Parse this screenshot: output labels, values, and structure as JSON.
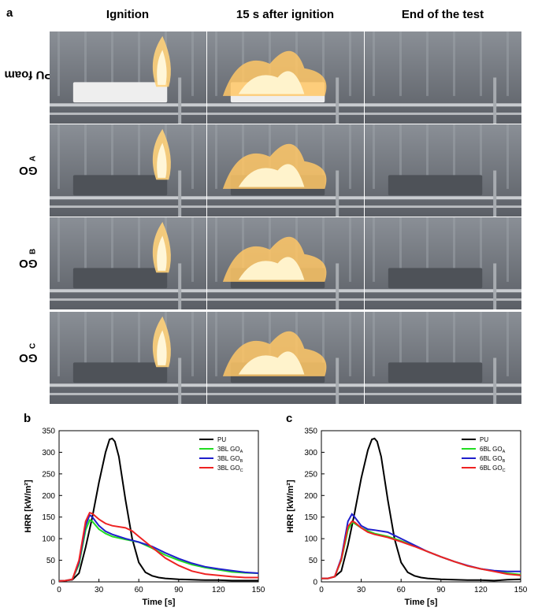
{
  "panel_a": {
    "letter": "a",
    "columns": [
      "Ignition",
      "15 s after ignition",
      "End of the test"
    ],
    "rows": [
      {
        "label": "PU foam",
        "sub": ""
      },
      {
        "label": "GO",
        "sub": "A"
      },
      {
        "label": "GO",
        "sub": "B"
      },
      {
        "label": "GO",
        "sub": "C"
      }
    ]
  },
  "panel_b": {
    "letter": "b"
  },
  "panel_c": {
    "letter": "c"
  },
  "chart_data": [
    {
      "type": "line",
      "xlabel": "Time [s]",
      "ylabel": "HRR [kW/m²]",
      "xlim": [
        0,
        150
      ],
      "ylim": [
        0,
        350
      ],
      "xticks": [
        0,
        30,
        60,
        90,
        120,
        150
      ],
      "yticks": [
        0,
        50,
        100,
        150,
        200,
        250,
        300,
        350
      ],
      "legend_position": "top-right",
      "series": [
        {
          "name": "PU",
          "sub": "",
          "color": "#000000",
          "x": [
            0,
            5,
            10,
            15,
            20,
            25,
            30,
            35,
            38,
            40,
            42,
            45,
            50,
            55,
            60,
            65,
            70,
            75,
            80,
            90,
            100,
            110,
            120,
            130,
            140,
            150
          ],
          "y": [
            2,
            3,
            5,
            20,
            80,
            150,
            230,
            300,
            330,
            332,
            325,
            290,
            190,
            100,
            45,
            22,
            14,
            10,
            8,
            6,
            5,
            4,
            4,
            3,
            3,
            3
          ]
        },
        {
          "name": "3BL GO",
          "sub": "A",
          "color": "#22dd22",
          "x": [
            0,
            5,
            10,
            15,
            20,
            23,
            25,
            30,
            35,
            40,
            50,
            60,
            70,
            80,
            90,
            100,
            110,
            120,
            130,
            140,
            150
          ],
          "y": [
            2,
            3,
            6,
            40,
            120,
            143,
            140,
            122,
            112,
            105,
            98,
            92,
            78,
            62,
            50,
            40,
            33,
            28,
            23,
            21,
            20
          ]
        },
        {
          "name": "3BL GO",
          "sub": "B",
          "color": "#1f1fcc",
          "x": [
            0,
            5,
            10,
            15,
            20,
            23,
            25,
            30,
            35,
            40,
            50,
            60,
            70,
            80,
            90,
            100,
            110,
            120,
            130,
            140,
            150
          ],
          "y": [
            2,
            3,
            6,
            45,
            130,
            155,
            150,
            130,
            117,
            110,
            100,
            92,
            82,
            67,
            54,
            43,
            35,
            30,
            26,
            22,
            20
          ]
        },
        {
          "name": "3BL GO",
          "sub": "C",
          "color": "#ee2222",
          "x": [
            0,
            5,
            10,
            15,
            20,
            23,
            25,
            30,
            35,
            40,
            50,
            55,
            60,
            70,
            80,
            90,
            100,
            110,
            120,
            130,
            140,
            150
          ],
          "y": [
            2,
            3,
            6,
            50,
            140,
            160,
            158,
            145,
            135,
            130,
            125,
            118,
            105,
            80,
            55,
            38,
            25,
            18,
            15,
            12,
            10,
            10
          ]
        }
      ]
    },
    {
      "type": "line",
      "xlabel": "Time [s]",
      "ylabel": "HRR [kW/m²]",
      "xlim": [
        0,
        150
      ],
      "ylim": [
        0,
        350
      ],
      "xticks": [
        0,
        30,
        60,
        90,
        120,
        150
      ],
      "yticks": [
        0,
        50,
        100,
        150,
        200,
        250,
        300,
        350
      ],
      "legend_position": "top-right",
      "series": [
        {
          "name": "PU",
          "sub": "",
          "color": "#000000",
          "x": [
            0,
            5,
            10,
            15,
            20,
            25,
            30,
            35,
            38,
            40,
            42,
            45,
            50,
            55,
            60,
            65,
            70,
            75,
            80,
            90,
            100,
            110,
            120,
            130,
            140,
            150
          ],
          "y": [
            8,
            8,
            12,
            25,
            85,
            160,
            240,
            305,
            330,
            332,
            325,
            290,
            190,
            100,
            45,
            22,
            14,
            10,
            8,
            6,
            5,
            4,
            4,
            3,
            5,
            6
          ]
        },
        {
          "name": "6BL GO",
          "sub": "A",
          "color": "#22dd22",
          "x": [
            0,
            5,
            10,
            15,
            20,
            23,
            25,
            30,
            35,
            40,
            50,
            60,
            70,
            80,
            90,
            100,
            110,
            120,
            130,
            140,
            150
          ],
          "y": [
            8,
            8,
            12,
            50,
            120,
            138,
            135,
            125,
            118,
            112,
            105,
            95,
            83,
            70,
            58,
            47,
            37,
            30,
            25,
            20,
            17
          ]
        },
        {
          "name": "6BL GO",
          "sub": "B",
          "color": "#1f1fcc",
          "x": [
            0,
            5,
            10,
            15,
            20,
            23,
            25,
            30,
            35,
            40,
            50,
            60,
            70,
            80,
            90,
            100,
            110,
            120,
            130,
            140,
            150
          ],
          "y": [
            8,
            8,
            12,
            55,
            140,
            157,
            150,
            130,
            122,
            120,
            115,
            100,
            85,
            70,
            58,
            47,
            38,
            30,
            26,
            24,
            24
          ]
        },
        {
          "name": "6BL GO",
          "sub": "C",
          "color": "#ee2222",
          "x": [
            0,
            5,
            10,
            15,
            20,
            23,
            25,
            30,
            35,
            40,
            50,
            60,
            70,
            80,
            90,
            100,
            110,
            120,
            130,
            140,
            150
          ],
          "y": [
            8,
            8,
            12,
            52,
            128,
            140,
            138,
            125,
            115,
            110,
            103,
            93,
            82,
            70,
            58,
            47,
            37,
            30,
            24,
            18,
            15
          ]
        }
      ]
    }
  ]
}
